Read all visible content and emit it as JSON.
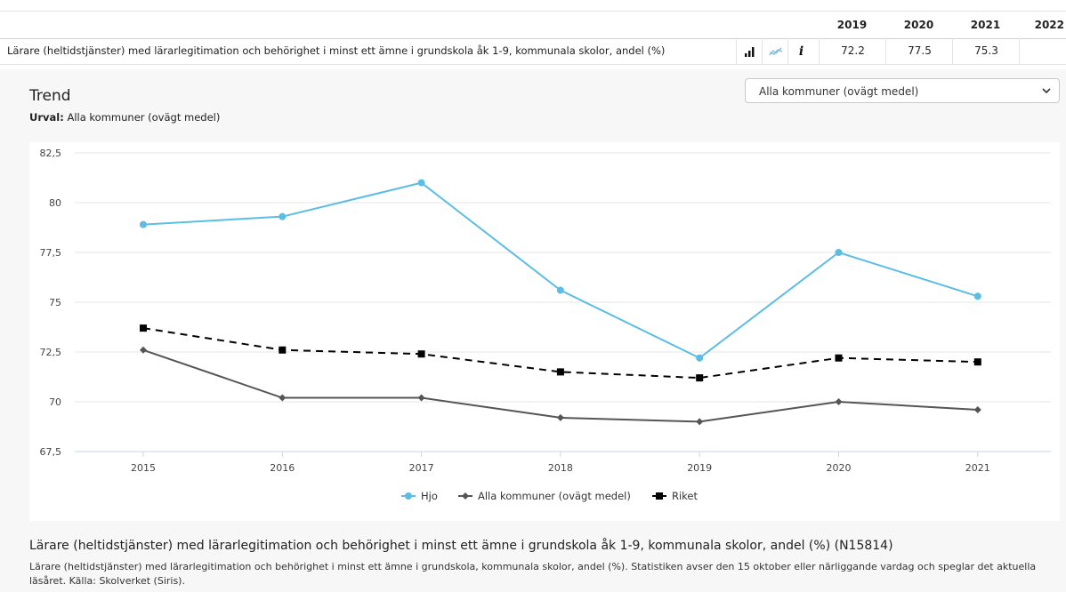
{
  "table": {
    "years": [
      "2019",
      "2020",
      "2021",
      "2022"
    ],
    "row_label": "Lärare (heltidstjänster) med lärarlegitimation och behörighet i minst ett ämne i grundskola åk 1-9, kommunala skolor, andel (%)",
    "values": [
      "72.2",
      "77.5",
      "75.3",
      ""
    ],
    "icons": [
      "bar-chart-icon",
      "line-chart-icon",
      "info-icon"
    ]
  },
  "trend": {
    "title": "Trend",
    "urval_label": "Urval:",
    "urval_value": "Alla kommuner (ovägt medel)"
  },
  "select": {
    "value": "Alla kommuner (ovägt medel)"
  },
  "colors": {
    "hjo": "#5bbde4",
    "alla": "#555555",
    "riket": "#000000",
    "grid": "#e6e6e6"
  },
  "chart_data": {
    "type": "line",
    "title": "",
    "xlabel": "",
    "ylabel": "",
    "x": [
      "2015",
      "2016",
      "2017",
      "2018",
      "2019",
      "2020",
      "2021"
    ],
    "ylim": [
      67.5,
      82.5
    ],
    "yticks": [
      "67,5",
      "70",
      "72,5",
      "75",
      "77,5",
      "80",
      "82,5"
    ],
    "ytick_values": [
      67.5,
      70,
      72.5,
      75,
      77.5,
      80,
      82.5
    ],
    "grid": true,
    "legend_position": "bottom",
    "series": [
      {
        "name": "Hjo",
        "values": [
          78.9,
          79.3,
          81.0,
          75.6,
          72.2,
          77.5,
          75.3
        ],
        "style": "solid",
        "marker": "circle"
      },
      {
        "name": "Alla kommuner (ovägt medel)",
        "values": [
          72.6,
          70.2,
          70.2,
          69.2,
          69.0,
          70.0,
          69.6
        ],
        "style": "solid",
        "marker": "diamond"
      },
      {
        "name": "Riket",
        "values": [
          73.7,
          72.6,
          72.4,
          71.5,
          71.2,
          72.2,
          72.0
        ],
        "style": "dashed",
        "marker": "square"
      }
    ]
  },
  "footer": {
    "title": "Lärare (heltidstjänster) med lärarlegitimation och behörighet i minst ett ämne i grundskola åk 1-9, kommunala skolor, andel (%) (N15814)",
    "description": "Lärare (heltidstjänster) med lärarlegitimation och behörighet i minst ett ämne i grundskola, kommunala skolor, andel (%). Statistiken avser den 15 oktober eller närliggande vardag och speglar det aktuella läsåret. Källa: Skolverket (Siris)."
  }
}
